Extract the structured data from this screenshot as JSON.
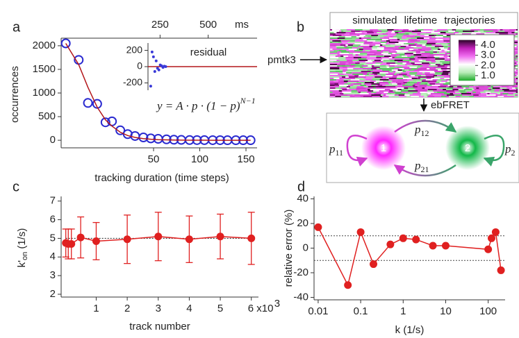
{
  "chart_data": [
    {
      "type": "scatter",
      "panel": "a",
      "xlabel": "tracking duration (time steps)",
      "ylabel": "occurrences",
      "x": [
        -45,
        -31,
        -21,
        -11,
        -2,
        5,
        14,
        22,
        30,
        39,
        47,
        55,
        64,
        72,
        80,
        89,
        97,
        105,
        114,
        122,
        130,
        139,
        147,
        155
      ],
      "series": [
        {
          "color": "#2a2ad0",
          "marker": "circle",
          "values": [
            2050,
            1700,
            790,
            770,
            380,
            400,
            210,
            130,
            90,
            60,
            40,
            30,
            20,
            12,
            8,
            5,
            4,
            3,
            2,
            2,
            1,
            1,
            1,
            1
          ]
        },
        {
          "color": "#b3161a",
          "marker": "line",
          "values": [
            2050,
            1600,
            1120,
            700,
            430,
            300,
            170,
            100,
            60,
            35,
            22,
            13,
            8,
            5,
            3,
            2,
            1,
            1,
            0,
            0,
            0,
            0,
            0,
            0
          ]
        }
      ],
      "xlim": [
        -50,
        162
      ],
      "ylim": [
        -160,
        2160
      ],
      "xticks": [
        50,
        100,
        150
      ],
      "yticks": [
        0,
        500,
        1000,
        1500,
        2000
      ],
      "x2lim": [
        -264,
        754
      ],
      "x2ticks": [
        250,
        500
      ],
      "x2label": "ms",
      "equation": "y = A · p · (1 − p)",
      "equation_exponent": "N−1",
      "inset": {
        "type": "scatter",
        "title": "residual",
        "x": [
          4,
          6,
          8,
          10,
          12,
          14,
          16,
          18,
          20,
          22,
          24,
          26
        ],
        "values": [
          -240,
          180,
          120,
          -60,
          70,
          -20,
          -40,
          20,
          10,
          -10,
          5,
          0
        ],
        "color": "#3a3ad8",
        "xlim": [
          0,
          160
        ],
        "ylim": [
          -290,
          290
        ],
        "yticks": [
          -200,
          0,
          200
        ],
        "reference_line": 0,
        "reference_color": "#b3161a"
      }
    },
    {
      "type": "heatmap",
      "panel": "b",
      "title": "simulated lifetime trajectories",
      "row_label": "pmtk3",
      "clim": [
        0.5,
        4.5
      ],
      "cticks": [
        {
          "value": 1,
          "label": "1.0"
        },
        {
          "value": 2,
          "label": "2.0"
        },
        {
          "value": 3,
          "label": "3.0"
        },
        {
          "value": 4,
          "label": "4.0"
        }
      ],
      "colormap": [
        "#1faa2a",
        "#b8ecb8",
        "#ffffff",
        "#f070f0",
        "#c020b8",
        "#2a0626"
      ],
      "method": "ebFRET",
      "states": [
        "1",
        "2"
      ],
      "state_colors": [
        "#ff28ff",
        "#12b848"
      ],
      "transition_symbol": "p",
      "transitions": [
        "11",
        "12",
        "21",
        "2"
      ]
    },
    {
      "type": "errorbar",
      "panel": "c",
      "xlabel": "track number",
      "ylabel": "k'",
      "ylabel_subscript": "on",
      "ylabel_unit": " (1/s)",
      "x": [
        0.02,
        0.1,
        0.2,
        0.5,
        1,
        2,
        3,
        4,
        5,
        6
      ],
      "values": [
        4.75,
        4.7,
        4.7,
        5.05,
        4.85,
        4.95,
        5.1,
        4.95,
        5.1,
        5.0
      ],
      "errors": [
        0.75,
        0.8,
        0.8,
        1.1,
        1.0,
        1.3,
        1.3,
        1.25,
        1.2,
        1.4
      ],
      "color": "#e02020",
      "xlim": [
        -0.13,
        6.23
      ],
      "ylim": [
        1.85,
        7.25
      ],
      "xticks": [
        1,
        2,
        3,
        4,
        5,
        {
          "value": 6,
          "label": "6 x10"
        }
      ],
      "xtick_exponent": "3",
      "yticks": [
        2,
        3,
        4,
        5,
        6,
        7
      ],
      "reference_line": 5
    },
    {
      "type": "line",
      "panel": "d",
      "xlabel": "k (1/s)",
      "ylabel": "relative error (%)",
      "x": [
        0.01,
        0.05,
        0.1,
        0.2,
        0.5,
        1,
        2,
        5,
        10,
        100,
        120,
        150,
        200
      ],
      "values": [
        17,
        -30,
        13,
        -13,
        3,
        8,
        7,
        2,
        2,
        -1,
        8,
        13,
        -18
      ],
      "xscale": "log",
      "xlim": [
        0.008,
        250
      ],
      "ylim": [
        -42,
        42
      ],
      "xticks": [
        0.01,
        0.1,
        1,
        10,
        100
      ],
      "yticks": [
        -40,
        -20,
        0,
        20,
        40
      ],
      "reference_lines": [
        -10,
        10
      ],
      "color": "#e02020"
    }
  ]
}
